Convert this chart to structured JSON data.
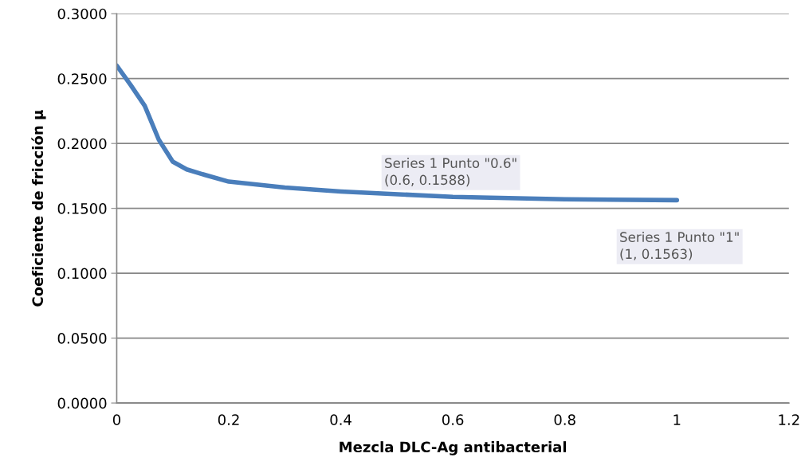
{
  "chart_data": {
    "type": "line",
    "xlabel": "Mezcla DLC-Ag antibacterial",
    "ylabel": "Coeficiente de fricción μ",
    "x": [
      0,
      0.025,
      0.05,
      0.075,
      0.1,
      0.125,
      0.15,
      0.2,
      0.3,
      0.4,
      0.6,
      0.8,
      1
    ],
    "series": [
      {
        "color": "#4a7ebb",
        "values": [
          0.26,
          0.245,
          0.229,
          0.203,
          0.186,
          0.18,
          0.1767,
          0.1706,
          0.166,
          0.163,
          0.1588,
          0.157,
          0.1563
        ]
      }
    ],
    "xlim": [
      0,
      1.2
    ],
    "xticks": [
      0,
      0.2,
      0.4,
      0.6,
      0.8,
      1,
      1.2
    ],
    "ylim": [
      0,
      0.3
    ],
    "yticks": [
      {
        "value": 0,
        "label": "0.0000"
      },
      {
        "value": 0.05,
        "label": "0.0500"
      },
      {
        "value": 0.1,
        "label": "0.1000"
      },
      {
        "value": 0.15,
        "label": "0.1500"
      },
      {
        "value": 0.2,
        "label": "0.2000"
      },
      {
        "value": 0.25,
        "label": "0.2500"
      },
      {
        "value": 0.3,
        "label": "0.3000"
      }
    ],
    "annotations": [
      {
        "text": "Series 1 Punto \"0.6\"\n(0.6, 0.1588)",
        "x": 0.6,
        "y": 0.1588
      },
      {
        "text": "Series 1 Punto \"1\"\n(1, 0.1563)",
        "x": 1,
        "y": 0.1563
      }
    ],
    "grid": "y",
    "marker": "none",
    "line_style": "solid"
  }
}
